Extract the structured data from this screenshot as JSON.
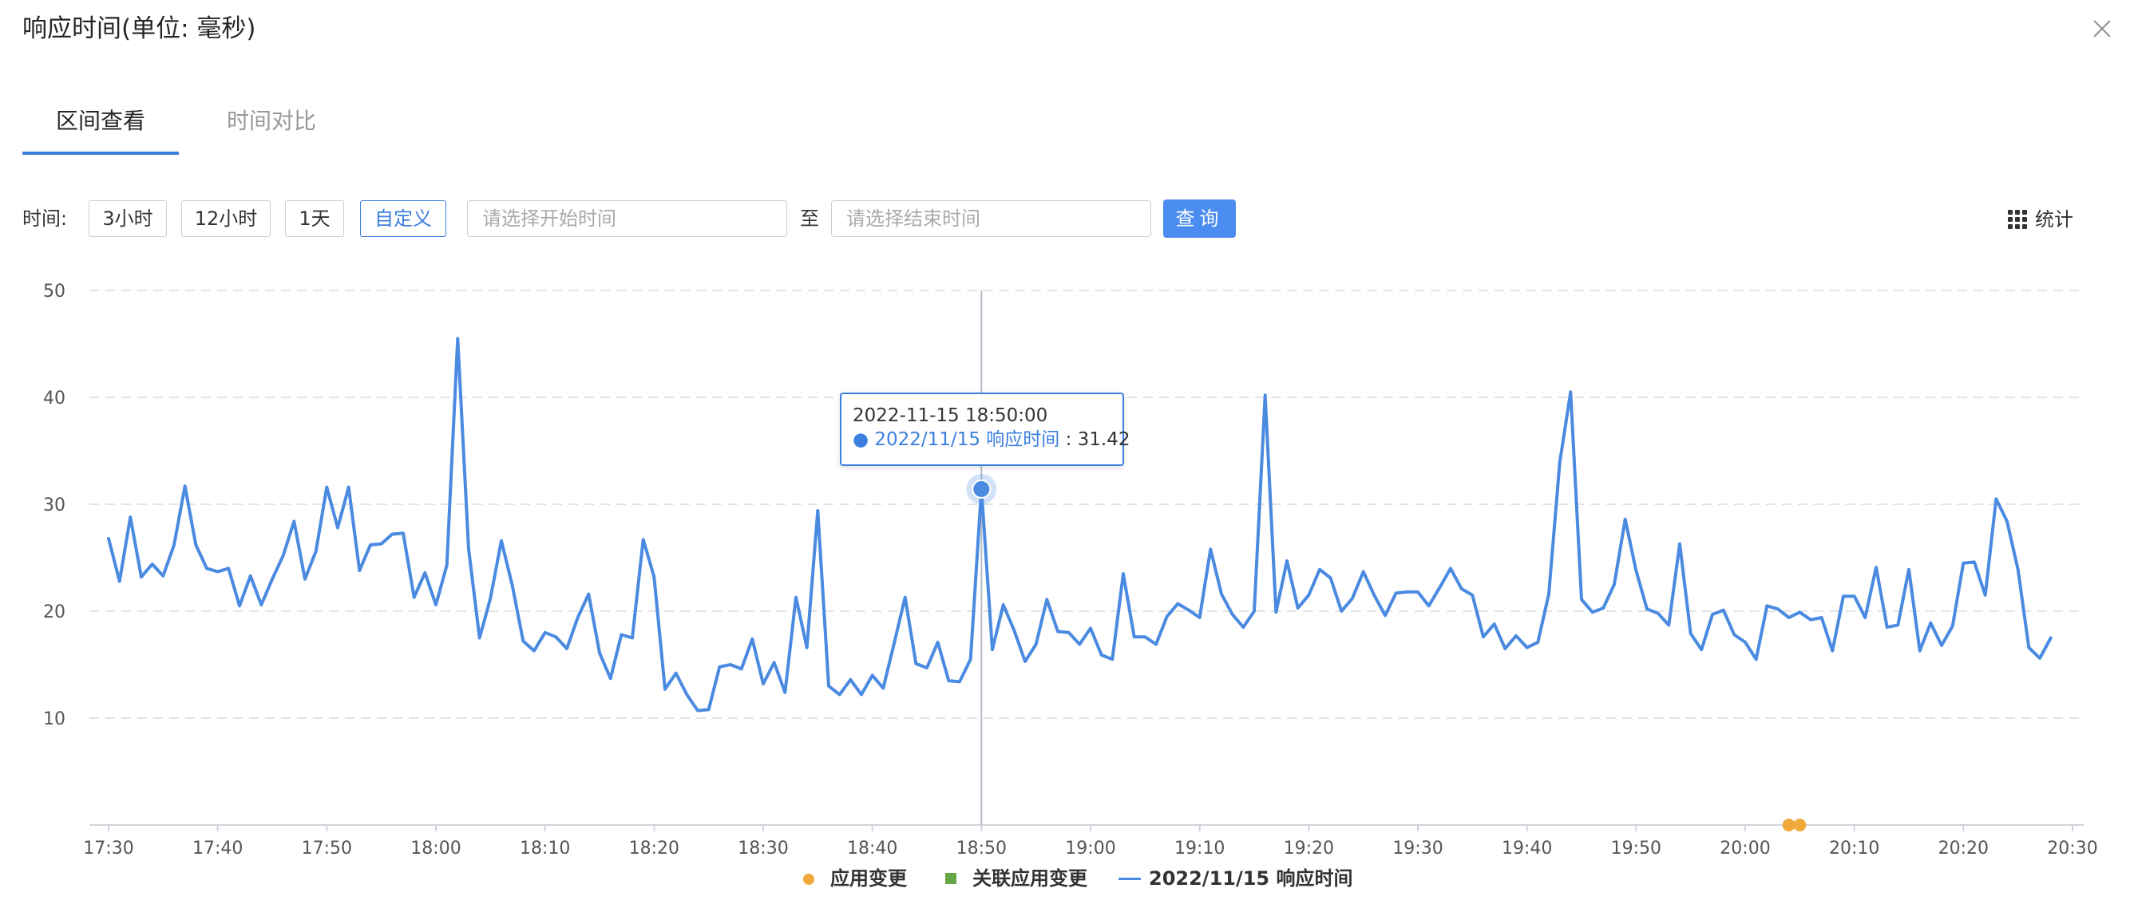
{
  "dialog": {
    "title": "响应时间(单位: 毫秒)"
  },
  "tabs": [
    {
      "label": "区间查看",
      "active": true
    },
    {
      "label": "时间对比",
      "active": false
    }
  ],
  "toolbar": {
    "time_label": "时间:",
    "range_buttons": [
      {
        "label": "3小时",
        "active": false
      },
      {
        "label": "12小时",
        "active": false
      },
      {
        "label": "1天",
        "active": false
      },
      {
        "label": "自定义",
        "active": true
      }
    ],
    "start_placeholder": "请选择开始时间",
    "to_label": "至",
    "end_placeholder": "请选择结束时间",
    "query_label": "查询",
    "stats_label": "统计",
    "stats_icon": "grid-icon"
  },
  "tooltip": {
    "time": "2022-11-15 18:50:00",
    "series": "2022/11/15 响应时间",
    "separator": " : ",
    "value": "31.42"
  },
  "colors": {
    "accent": "#3b7fe0",
    "line": "#4a8ae0",
    "app_change": "#f0a93a",
    "related_change": "#63a845",
    "grid": "#e3e3e3"
  },
  "chart_data": {
    "type": "line",
    "title": "响应时间(单位: 毫秒)",
    "ylim": [
      0,
      50
    ],
    "y_ticks": [
      10,
      20,
      30,
      40,
      50
    ],
    "x_range": [
      "17:30",
      "20:30"
    ],
    "x_ticks": [
      "17:30",
      "17:40",
      "17:50",
      "18:00",
      "18:10",
      "18:20",
      "18:30",
      "18:40",
      "18:50",
      "19:00",
      "19:10",
      "19:20",
      "19:30",
      "19:40",
      "19:50",
      "20:00",
      "20:10",
      "20:20",
      "20:30"
    ],
    "x_interval_minutes": 1,
    "grid": true,
    "legend_position": "bottom",
    "legend": [
      "应用变更",
      "关联应用变更",
      "2022/11/15 响应时间"
    ],
    "series": [
      {
        "name": "2022/11/15 响应时间",
        "values": [
          26.8,
          22.8,
          28.8,
          23.2,
          24.4,
          23.3,
          26.2,
          31.7,
          26.2,
          24.0,
          23.7,
          24.0,
          20.5,
          23.3,
          20.6,
          23.0,
          25.2,
          28.4,
          23.0,
          25.6,
          31.6,
          27.8,
          31.6,
          23.8,
          26.2,
          26.3,
          27.2,
          27.3,
          21.3,
          23.6,
          20.6,
          24.3,
          45.5,
          25.8,
          17.5,
          21.2,
          26.6,
          22.4,
          17.2,
          16.3,
          18.0,
          17.6,
          16.5,
          19.4,
          21.6,
          16.1,
          13.7,
          17.8,
          17.5,
          26.7,
          23.2,
          12.7,
          14.2,
          12.2,
          10.7,
          10.8,
          14.8,
          15.0,
          14.6,
          17.4,
          13.2,
          15.2,
          12.4,
          21.3,
          16.6,
          29.4,
          13.0,
          12.2,
          13.6,
          12.2,
          14.0,
          12.8,
          17.0,
          21.3,
          15.1,
          14.7,
          17.1,
          13.5,
          13.4,
          15.5,
          31.42,
          16.4,
          20.6,
          18.2,
          15.3,
          16.9,
          21.1,
          18.1,
          18.0,
          16.9,
          18.4,
          15.9,
          15.5,
          23.5,
          17.6,
          17.6,
          16.9,
          19.5,
          20.7,
          20.1,
          19.4,
          25.8,
          21.6,
          19.7,
          18.5,
          20.0,
          40.2,
          19.9,
          24.7,
          20.3,
          21.5,
          23.9,
          23.1,
          20.0,
          21.2,
          23.7,
          21.5,
          19.6,
          21.7,
          21.8,
          21.8,
          20.5,
          22.2,
          24.0,
          22.1,
          21.5,
          17.6,
          18.8,
          16.5,
          17.7,
          16.6,
          17.1,
          21.6,
          33.9,
          40.5,
          21.1,
          19.9,
          20.3,
          22.5,
          28.6,
          23.8,
          20.2,
          19.8,
          18.7,
          26.3,
          17.9,
          16.4,
          19.7,
          20.1,
          17.8,
          17.1,
          15.5,
          20.5,
          20.2,
          19.4,
          19.9,
          19.2,
          19.4,
          16.3,
          21.4,
          21.4,
          19.4,
          24.1,
          18.5,
          18.7,
          23.9,
          16.3,
          18.9,
          16.8,
          18.6,
          24.5,
          24.6,
          21.5,
          30.5,
          28.4,
          23.9,
          16.6,
          15.6,
          17.5
        ]
      }
    ],
    "markers": [
      {
        "series": "应用变更",
        "x": [
          "20:04",
          "20:05"
        ]
      }
    ],
    "highlight": {
      "x": "18:50",
      "y": 31.42
    }
  }
}
